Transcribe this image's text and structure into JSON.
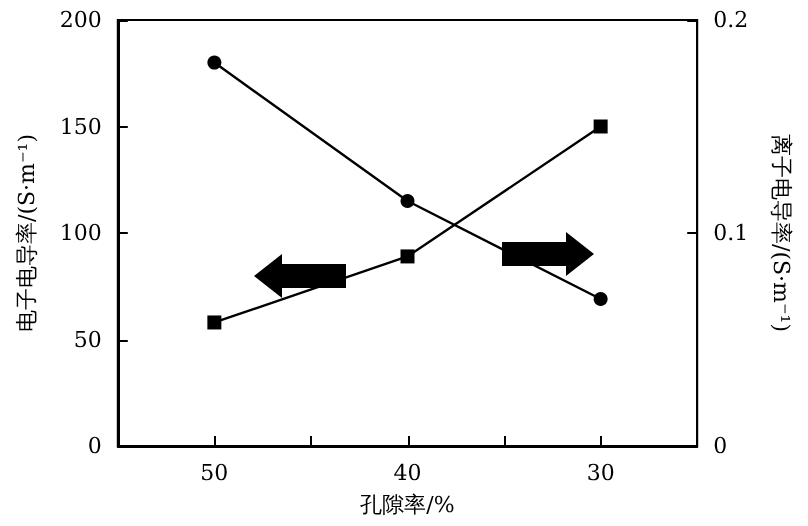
{
  "chart_data": {
    "type": "line",
    "xlabel": "孔隙率/%",
    "ylabel": "电子电导率/(S·m⁻¹)",
    "y2label": "离子电导率/(S·m⁻¹)",
    "x": [
      50,
      40,
      30
    ],
    "xlim": [
      55,
      25
    ],
    "xticks": [
      50,
      {
        "value": 45,
        "label": null
      },
      40,
      {
        "value": 35,
        "label": null
      },
      30
    ],
    "ylim": [
      0,
      200
    ],
    "yticks": [
      0,
      50,
      100,
      150,
      200
    ],
    "y2lim": [
      0,
      0.2
    ],
    "y2ticks": [
      0,
      0.1,
      0.2
    ],
    "grid": false,
    "line_style": "solid",
    "series": [
      {
        "color": "#000000",
        "values": [
          58,
          89,
          150
        ],
        "marker": "square"
      },
      {
        "color": "#000000",
        "values": [
          0.18,
          0.115,
          0.069
        ],
        "axis": "y2",
        "marker": "circle"
      }
    ]
  }
}
